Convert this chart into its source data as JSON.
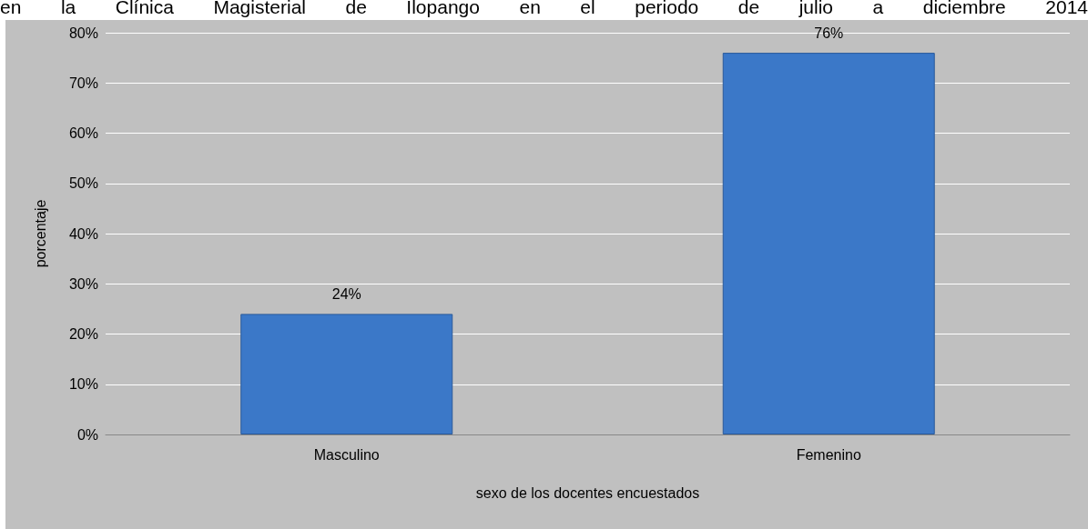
{
  "chart_data": {
    "type": "bar",
    "title": "en la Clínica Magisterial de Ilopango en el periodo de julio a diciembre 2014",
    "xlabel": "sexo de los docentes encuestados",
    "ylabel": "porcentaje",
    "categories": [
      "Masculino",
      "Femenino"
    ],
    "values": [
      24,
      76
    ],
    "color": "#3b78c8",
    "value_labels": [
      "24%",
      "76%"
    ],
    "ylim": [
      0,
      80
    ],
    "yticks": [
      {
        "value": 0,
        "label": "0%"
      },
      {
        "value": 10,
        "label": "10%"
      },
      {
        "value": 20,
        "label": "20%"
      },
      {
        "value": 30,
        "label": "30%"
      },
      {
        "value": 40,
        "label": "40%"
      },
      {
        "value": 50,
        "label": "50%"
      },
      {
        "value": 60,
        "label": "60%"
      },
      {
        "value": 70,
        "label": "70%"
      },
      {
        "value": 80,
        "label": "80%"
      }
    ],
    "grid": true
  }
}
